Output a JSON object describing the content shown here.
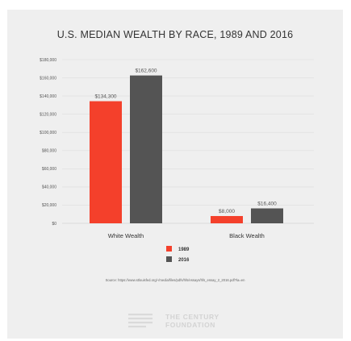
{
  "chart_data": {
    "type": "bar",
    "title": "U.S. MEDIAN WEALTH BY RACE, 1989 AND 2016",
    "categories": [
      "White Wealth",
      "Black Wealth"
    ],
    "series": [
      {
        "name": "1989",
        "values": [
          134300,
          8000
        ],
        "labels": [
          "$134,300",
          "$8,000"
        ],
        "color": "#f4402b"
      },
      {
        "name": "2016",
        "values": [
          162600,
          16400
        ],
        "labels": [
          "$162,600",
          "$16,400"
        ],
        "color": "#545454"
      }
    ],
    "ylim": [
      0,
      180000
    ],
    "yticks": [
      0,
      20000,
      40000,
      60000,
      80000,
      100000,
      120000,
      140000,
      160000,
      180000
    ],
    "ytick_labels": [
      "$0",
      "$20,000",
      "$40,000",
      "$60,000",
      "$80,000",
      "$100,000",
      "$120,000",
      "$140,000",
      "$160,000",
      "$180,000"
    ],
    "xlabel": "",
    "ylabel": "",
    "grid": true,
    "legend_position": "bottom-center",
    "source": "Source: https://www.stlouisfed.org/-/media/files/pdfs/hfs/essays/hfs_essay_2_2016.pdf?la=en",
    "logo_text": [
      "THE CENTURY",
      "FOUNDATION"
    ]
  }
}
